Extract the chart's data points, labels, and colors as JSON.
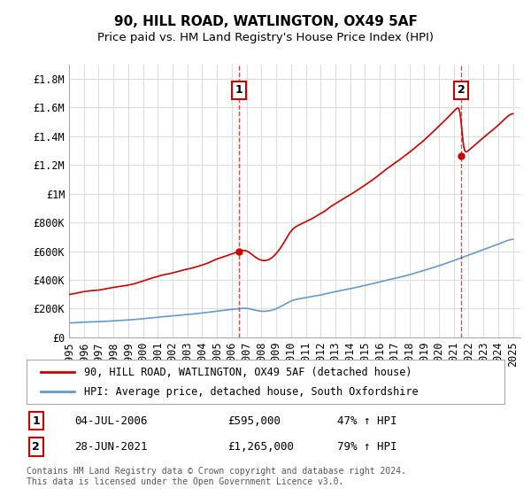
{
  "title": "90, HILL ROAD, WATLINGTON, OX49 5AF",
  "subtitle": "Price paid vs. HM Land Registry's House Price Index (HPI)",
  "ylabel_ticks": [
    "£0",
    "£200K",
    "£400K",
    "£600K",
    "£800K",
    "£1M",
    "£1.2M",
    "£1.4M",
    "£1.6M",
    "£1.8M"
  ],
  "ylabel_values": [
    0,
    200000,
    400000,
    600000,
    800000,
    1000000,
    1200000,
    1400000,
    1600000,
    1800000
  ],
  "ylim": [
    0,
    1900000
  ],
  "xlim_start": 1995.5,
  "xlim_end": 2025.5,
  "purchase1_x": 2006.5,
  "purchase1_y": 595000,
  "purchase1_label": "1",
  "purchase1_date": "04-JUL-2006",
  "purchase1_price": "£595,000",
  "purchase1_hpi": "47% ↑ HPI",
  "purchase2_x": 2021.5,
  "purchase2_y": 1265000,
  "purchase2_label": "2",
  "purchase2_date": "28-JUN-2021",
  "purchase2_price": "£1,265,000",
  "purchase2_hpi": "79% ↑ HPI",
  "red_color": "#cc0000",
  "blue_color": "#6699cc",
  "legend_label_red": "90, HILL ROAD, WATLINGTON, OX49 5AF (detached house)",
  "legend_label_blue": "HPI: Average price, detached house, South Oxfordshire",
  "footer": "Contains HM Land Registry data © Crown copyright and database right 2024.\nThis data is licensed under the Open Government Licence v3.0.",
  "background_color": "#ffffff",
  "grid_color": "#dddddd",
  "title_fontsize": 11,
  "subtitle_fontsize": 9.5,
  "tick_fontsize": 8.5,
  "xtick_years": [
    1995,
    1996,
    1997,
    1998,
    1999,
    2000,
    2001,
    2002,
    2003,
    2004,
    2005,
    2006,
    2007,
    2008,
    2009,
    2010,
    2011,
    2012,
    2013,
    2014,
    2015,
    2016,
    2017,
    2018,
    2019,
    2020,
    2021,
    2022,
    2023,
    2024,
    2025
  ]
}
